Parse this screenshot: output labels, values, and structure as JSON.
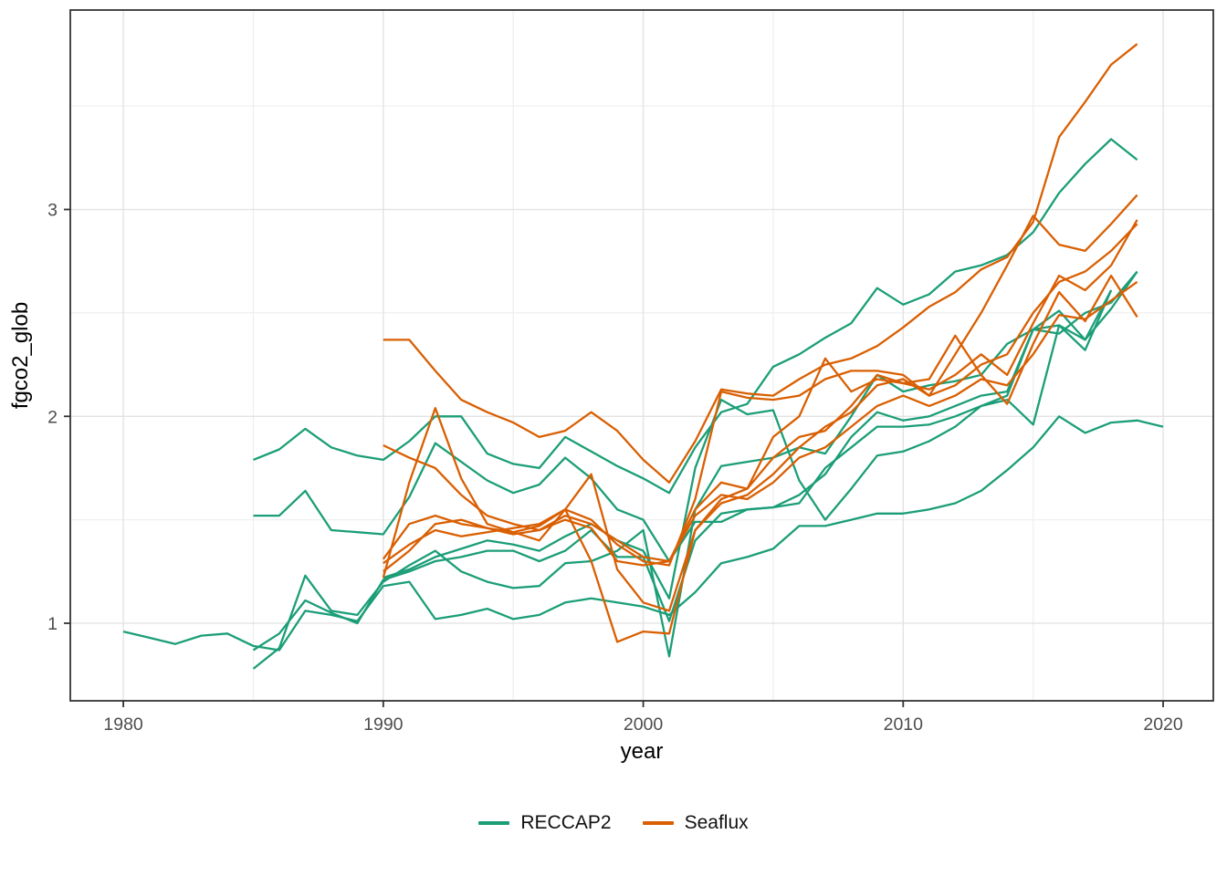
{
  "plot": {
    "background": "#ffffff",
    "panel_border_color": "#333333",
    "grid_major_color": "#e3e3e3",
    "grid_minor_color": "#efefef",
    "tick_color": "#333333",
    "tick_label_color": "#4d4d4d",
    "axis_title_color": "#000000",
    "reccap2_color": "#1b9e77",
    "seaflux_color": "#d95f02"
  },
  "chart_data": {
    "type": "line",
    "title": "",
    "xlabel": "year",
    "ylabel": "fgco2_glob",
    "grid": true,
    "legend_position": "bottom",
    "x_ticks": [
      1980,
      1990,
      2000,
      2010,
      2020
    ],
    "x_tick_labels": [
      "1980",
      "1990",
      "2000",
      "2010",
      "2020"
    ],
    "x_minor_ticks": [
      1985,
      1995,
      2005,
      2015
    ],
    "y_ticks": [
      1,
      2,
      3
    ],
    "y_tick_labels": [
      "1",
      "2",
      "3"
    ],
    "y_minor_ticks": [
      1.5,
      2.5,
      3.5
    ],
    "xlim": [
      1977.96,
      2021.93
    ],
    "ylim": [
      0.625,
      3.964
    ],
    "legend": {
      "entries": [
        {
          "label": "RECCAP2",
          "color": "#1b9e77"
        },
        {
          "label": "Seaflux",
          "color": "#d95f02"
        }
      ]
    },
    "series": [
      {
        "name": "reccap2_model_1",
        "group": "RECCAP2",
        "color": "#1b9e77",
        "start_year": 1980,
        "values": [
          0.96,
          0.93,
          0.9,
          0.94,
          0.95,
          0.89,
          0.87,
          1.06,
          1.04,
          1.01,
          1.18,
          1.2,
          1.02,
          1.04,
          1.07,
          1.02,
          1.04,
          1.1,
          1.12,
          1.1,
          1.08,
          1.04,
          1.15,
          1.29,
          1.32,
          1.36,
          1.47,
          1.47,
          1.5,
          1.53,
          1.53,
          1.55,
          1.58,
          1.64,
          1.74,
          1.85,
          2.0,
          1.92,
          1.97,
          1.98,
          1.95
        ]
      },
      {
        "name": "reccap2_model_2",
        "group": "RECCAP2",
        "color": "#1b9e77",
        "start_year": 1985,
        "values": [
          1.79,
          1.84,
          1.94,
          1.85,
          1.81,
          1.79,
          1.88,
          2.0,
          2.0,
          1.82,
          1.77,
          1.75,
          1.9,
          1.83,
          1.76,
          1.7,
          1.63,
          1.85,
          2.02,
          2.06,
          2.24,
          2.3,
          2.38,
          2.45,
          2.62,
          2.54,
          2.59,
          2.7,
          2.73,
          2.78,
          2.89,
          3.08,
          3.22,
          3.34,
          3.24
        ]
      },
      {
        "name": "reccap2_model_3",
        "group": "RECCAP2",
        "color": "#1b9e77",
        "start_year": 1985,
        "values": [
          1.52,
          1.52,
          1.64,
          1.45,
          1.44,
          1.43,
          1.61,
          1.87,
          1.78,
          1.69,
          1.63,
          1.67,
          1.8,
          1.7,
          1.55,
          1.5,
          1.3,
          1.49,
          1.49,
          1.55,
          1.56,
          1.62,
          1.72,
          1.9,
          2.02,
          1.98,
          2.0,
          2.05,
          2.1,
          2.12,
          2.42,
          2.44,
          2.37,
          2.52,
          2.7
        ]
      },
      {
        "name": "reccap2_model_4",
        "group": "RECCAP2",
        "color": "#1b9e77",
        "start_year": 1985,
        "values": [
          0.87,
          0.95,
          1.11,
          1.05,
          1.0,
          1.21,
          1.25,
          1.3,
          1.32,
          1.35,
          1.35,
          1.3,
          1.35,
          1.45,
          1.32,
          1.32,
          1.01,
          1.4,
          1.53,
          1.55,
          1.56,
          1.58,
          1.75,
          1.85,
          1.95,
          1.95,
          1.96,
          2.0,
          2.05,
          2.08,
          1.96,
          2.44,
          2.32,
          2.61
        ]
      },
      {
        "name": "reccap2_model_5",
        "group": "RECCAP2",
        "color": "#1b9e77",
        "start_year": 1985,
        "values": [
          0.78,
          0.88,
          1.23,
          1.06,
          1.04,
          1.2,
          1.28,
          1.35,
          1.25,
          1.2,
          1.17,
          1.18,
          1.29,
          1.3,
          1.35,
          1.45,
          0.84,
          1.55,
          1.76,
          1.78,
          1.8,
          1.85,
          1.82,
          2.0,
          2.2,
          2.12,
          2.15,
          2.17,
          2.2,
          2.35,
          2.42,
          2.4,
          2.5,
          2.55,
          2.7
        ]
      },
      {
        "name": "reccap2_model_6",
        "group": "RECCAP2",
        "color": "#1b9e77",
        "start_year": 1990,
        "values": [
          1.22,
          1.26,
          1.32,
          1.36,
          1.4,
          1.38,
          1.35,
          1.42,
          1.48,
          1.4,
          1.35,
          1.12,
          1.75,
          2.08,
          2.01,
          2.03,
          1.69,
          1.5,
          1.65,
          1.81,
          1.83,
          1.88,
          1.95,
          2.05,
          2.1,
          2.42,
          2.51,
          2.37,
          2.61
        ]
      },
      {
        "name": "seaflux_product_1",
        "group": "Seaflux",
        "color": "#d95f02",
        "start_year": 1990,
        "values": [
          2.37,
          2.37,
          2.22,
          2.08,
          2.02,
          1.97,
          1.9,
          1.93,
          2.02,
          1.93,
          1.79,
          1.68,
          1.88,
          2.13,
          2.11,
          2.1,
          2.18,
          2.25,
          2.28,
          2.34,
          2.43,
          2.53,
          2.6,
          2.71,
          2.77,
          2.94,
          3.35,
          3.52,
          3.7,
          3.8
        ]
      },
      {
        "name": "seaflux_product_2",
        "group": "Seaflux",
        "color": "#d95f02",
        "start_year": 1990,
        "values": [
          1.22,
          1.68,
          2.04,
          1.7,
          1.48,
          1.44,
          1.4,
          1.55,
          1.72,
          1.26,
          1.1,
          1.06,
          1.45,
          1.6,
          1.65,
          1.8,
          1.9,
          1.93,
          2.05,
          2.2,
          2.16,
          2.18,
          2.39,
          2.2,
          2.06,
          2.35,
          2.6,
          2.46,
          2.68,
          2.48
        ]
      },
      {
        "name": "seaflux_product_3",
        "group": "Seaflux",
        "color": "#d95f02",
        "start_year": 1990,
        "values": [
          1.86,
          1.8,
          1.75,
          1.62,
          1.52,
          1.48,
          1.45,
          1.5,
          1.46,
          1.3,
          1.28,
          1.3,
          1.55,
          1.68,
          1.65,
          1.9,
          2.0,
          2.28,
          2.12,
          2.18,
          2.16,
          2.13,
          2.2,
          2.3,
          2.2,
          2.45,
          2.68,
          2.61,
          2.73,
          2.95
        ]
      },
      {
        "name": "seaflux_product_4",
        "group": "Seaflux",
        "color": "#d95f02",
        "start_year": 1990,
        "values": [
          1.31,
          1.48,
          1.52,
          1.48,
          1.46,
          1.43,
          1.45,
          1.52,
          1.48,
          1.4,
          1.32,
          1.3,
          1.52,
          1.62,
          1.6,
          1.68,
          1.8,
          1.85,
          1.95,
          2.05,
          2.1,
          2.05,
          2.1,
          2.18,
          2.15,
          2.3,
          2.49,
          2.47,
          2.56,
          2.65
        ]
      },
      {
        "name": "seaflux_product_5",
        "group": "Seaflux",
        "color": "#d95f02",
        "start_year": 1990,
        "values": [
          1.29,
          1.38,
          1.45,
          1.42,
          1.44,
          1.46,
          1.48,
          1.55,
          1.3,
          0.91,
          0.96,
          0.95,
          1.45,
          1.58,
          1.62,
          1.72,
          1.85,
          1.95,
          2.02,
          2.15,
          2.18,
          2.1,
          2.15,
          2.25,
          2.3,
          2.5,
          2.65,
          2.7,
          2.8,
          2.93
        ]
      },
      {
        "name": "seaflux_product_6",
        "group": "Seaflux",
        "color": "#d95f02",
        "start_year": 1990,
        "values": [
          1.25,
          1.35,
          1.48,
          1.5,
          1.46,
          1.44,
          1.47,
          1.55,
          1.5,
          1.38,
          1.3,
          1.28,
          1.6,
          2.12,
          2.09,
          2.08,
          2.1,
          2.18,
          2.22,
          2.22,
          2.2,
          2.1,
          2.3,
          2.5,
          2.73,
          2.97,
          2.83,
          2.8,
          2.93,
          3.07
        ]
      }
    ]
  }
}
